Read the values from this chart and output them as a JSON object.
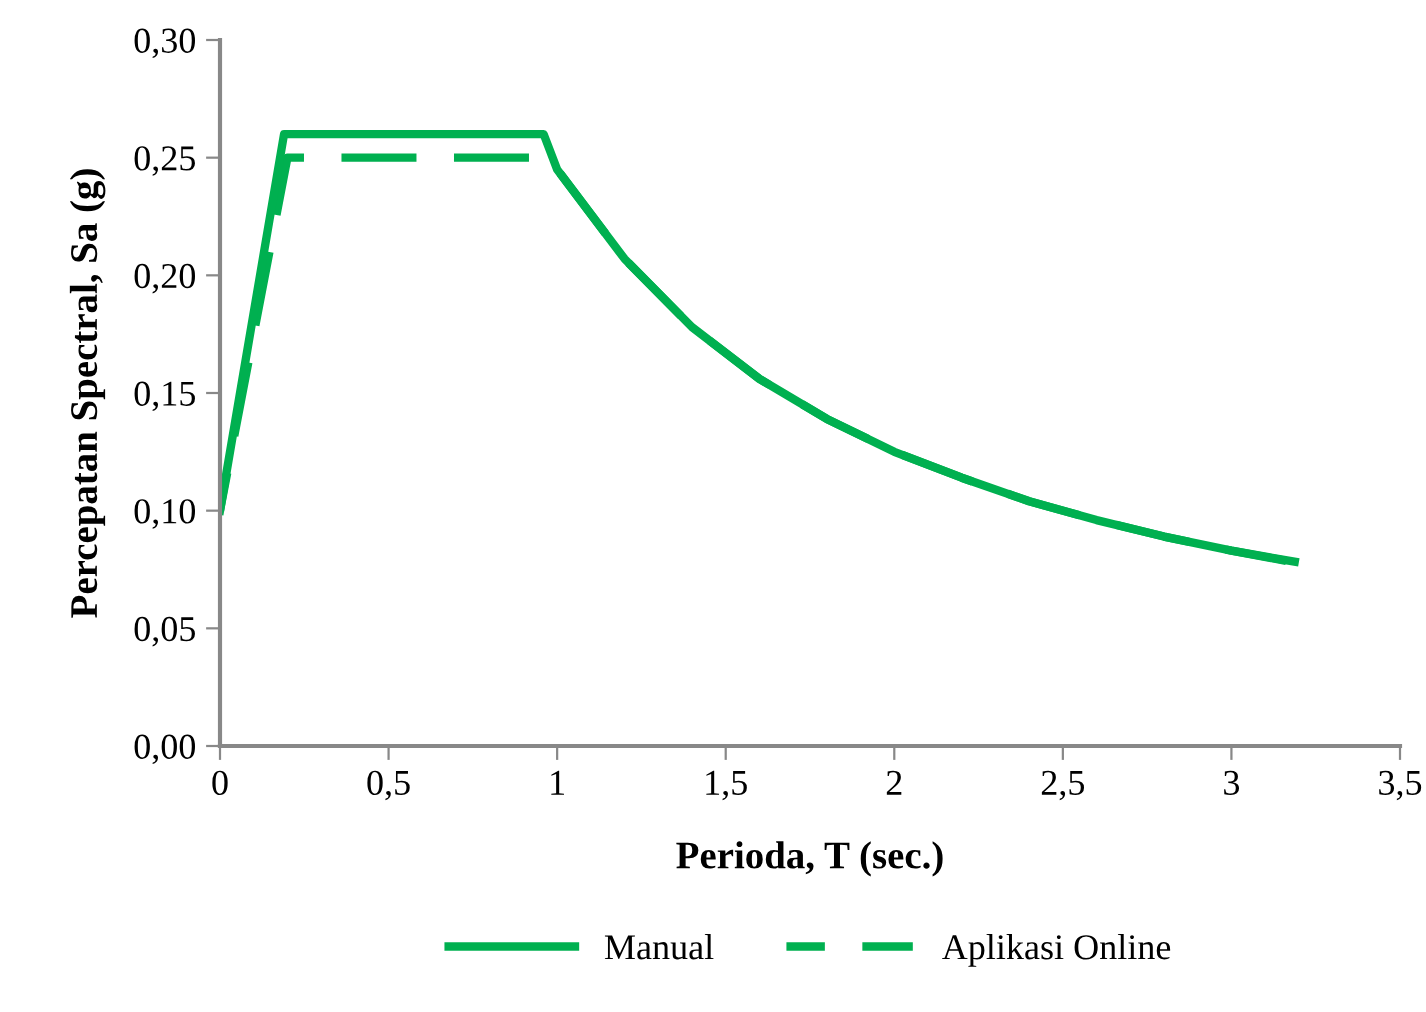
{
  "chart_data": {
    "type": "line",
    "xlabel": "Perioda, T (sec.)",
    "ylabel": "Percepatan Spectral, Sa (g)",
    "xlim": [
      0,
      3.5
    ],
    "xticks": [
      0,
      {
        "value": 0.5,
        "label": "0,5"
      },
      1,
      {
        "value": 1.5,
        "label": "1,5"
      },
      2,
      {
        "value": 2.5,
        "label": "2,5"
      },
      3,
      {
        "value": 3.5,
        "label": "3,5"
      }
    ],
    "ylim": [
      0,
      0.3
    ],
    "yticks": [
      {
        "value": 0,
        "label": "0,00"
      },
      {
        "value": 0.05,
        "label": "0,05"
      },
      {
        "value": 0.1,
        "label": "0,10"
      },
      {
        "value": 0.15,
        "label": "0,15"
      },
      {
        "value": 0.2,
        "label": "0,20"
      },
      {
        "value": 0.25,
        "label": "0,25"
      },
      {
        "value": 0.3,
        "label": "0,30"
      }
    ],
    "grid": false,
    "legend": "bottom",
    "marker": "none",
    "series": [
      {
        "name": "Aplikasi Online",
        "color": "#00b050",
        "line_style": "dashed",
        "x": [
          0,
          0.2,
          0.96,
          1.0,
          1.2,
          1.4,
          1.6,
          1.8,
          2.0,
          2.2,
          2.4,
          2.6,
          2.8,
          3.0,
          3.2
        ],
        "values": [
          0.1,
          0.25,
          0.25,
          0.245,
          0.207,
          0.178,
          0.156,
          0.139,
          0.125,
          0.114,
          0.104,
          0.096,
          0.089,
          0.083,
          0.078
        ]
      },
      {
        "name": "Manual",
        "color": "#00b050",
        "line_style": "solid",
        "x": [
          0,
          0.19,
          0.96,
          1.0,
          1.2,
          1.4,
          1.6,
          1.8,
          2.0,
          2.2,
          2.4,
          2.6,
          2.8,
          3.0,
          3.15
        ],
        "values": [
          0.1,
          0.26,
          0.26,
          0.245,
          0.207,
          0.178,
          0.156,
          0.139,
          0.125,
          0.114,
          0.104,
          0.096,
          0.089,
          0.083,
          0.079
        ]
      }
    ]
  }
}
